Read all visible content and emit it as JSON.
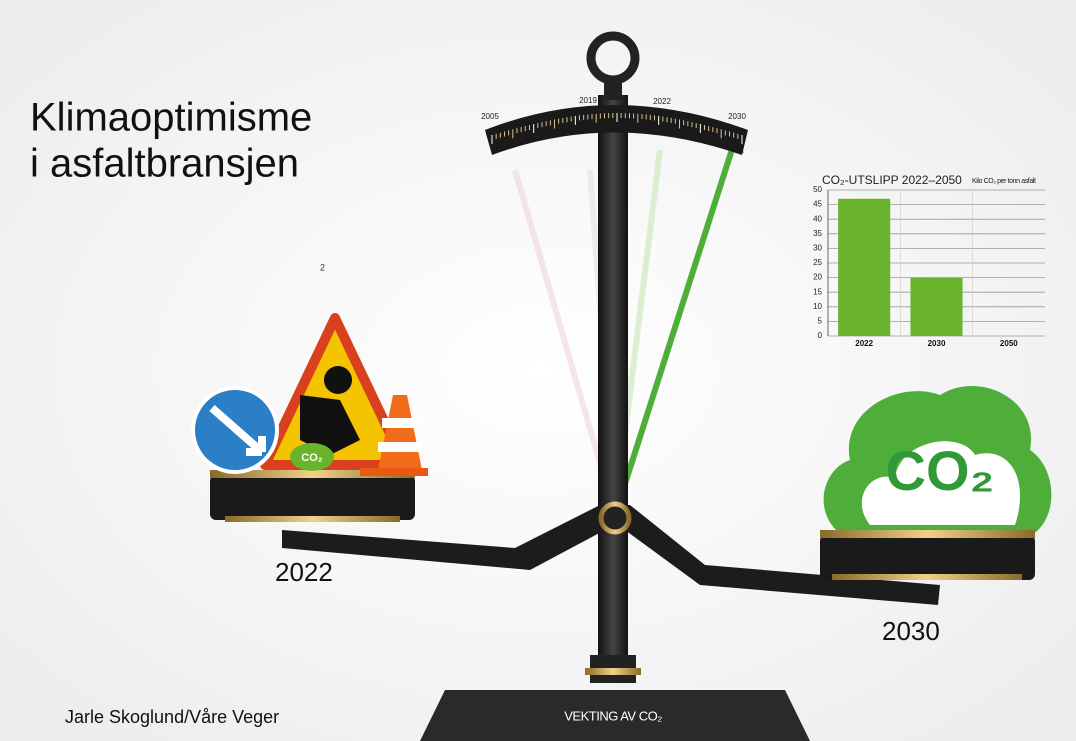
{
  "title_lines": [
    "Klimaoptimisme",
    "i asfaltbransjen"
  ],
  "stray_label": "2",
  "scale_labels": [
    "2005",
    "2019",
    "2022",
    "2030"
  ],
  "pan_labels": [
    "2022",
    "2030"
  ],
  "icon_labels": [
    "CO₂",
    "CO₂"
  ],
  "base_label": "VEKTING AV CO₂",
  "caption": "Jarle Skoglund/Våre Veger",
  "chart_data": {
    "type": "bar",
    "title": "CO₂-UTSLIPP 2022–2050",
    "subtitle": "Kilo CO₂ per tonn asfalt",
    "categories": [
      "2022",
      "2030",
      "2050"
    ],
    "values": [
      47,
      20,
      0
    ],
    "color": "#6ab42d",
    "ylim": [
      0,
      50
    ],
    "yticks": [
      0,
      5,
      10,
      15,
      20,
      25,
      30,
      35,
      40,
      45,
      50
    ],
    "grid": true
  }
}
